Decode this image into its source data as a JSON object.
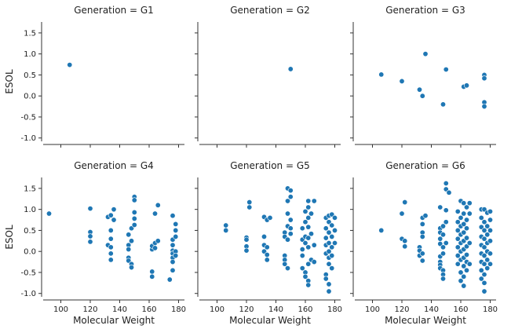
{
  "chart_data": {
    "type": "scatter",
    "layout": "facet-grid 2x3, shared axes",
    "xlabel": "Molecular Weight",
    "ylabel": "ESOL",
    "xlim": [
      88,
      184
    ],
    "ylim": [
      -1.08,
      1.76
    ],
    "xticks": [
      100,
      120,
      140,
      160,
      180
    ],
    "yticks": [
      -1.0,
      -0.5,
      0.0,
      0.5,
      1.0,
      1.5
    ],
    "ytick_labels": [
      "-1.0",
      "-0.5",
      "0.0",
      "0.5",
      "1.0",
      "1.5"
    ],
    "grid": false,
    "marker_color": "#1f77b4",
    "panels": [
      {
        "title": "Generation = G1",
        "points": [
          [
            106,
            0.74
          ]
        ]
      },
      {
        "title": "Generation = G2",
        "points": [
          [
            150,
            0.64
          ]
        ]
      },
      {
        "title": "Generation = G3",
        "points": [
          [
            106,
            0.51
          ],
          [
            120,
            0.35
          ],
          [
            132,
            0.15
          ],
          [
            134,
            0.0
          ],
          [
            136,
            1.0
          ],
          [
            148,
            -0.2
          ],
          [
            150,
            0.63
          ],
          [
            162,
            0.22
          ],
          [
            164,
            0.25
          ],
          [
            176,
            0.5
          ],
          [
            176,
            0.42
          ],
          [
            176,
            -0.15
          ],
          [
            176,
            -0.25
          ]
        ]
      },
      {
        "title": "Generation = G4",
        "points": [
          [
            92,
            0.9
          ],
          [
            120,
            1.02
          ],
          [
            120,
            0.46
          ],
          [
            120,
            0.36
          ],
          [
            120,
            0.23
          ],
          [
            132,
            0.82
          ],
          [
            132,
            0.15
          ],
          [
            134,
            0.86
          ],
          [
            134,
            0.5
          ],
          [
            134,
            0.3
          ],
          [
            134,
            0.1
          ],
          [
            134,
            -0.05
          ],
          [
            134,
            -0.2
          ],
          [
            136,
            0.75
          ],
          [
            136,
            1.0
          ],
          [
            146,
            0.4
          ],
          [
            146,
            0.15
          ],
          [
            146,
            0.05
          ],
          [
            146,
            -0.15
          ],
          [
            146,
            -0.22
          ],
          [
            148,
            0.55
          ],
          [
            148,
            0.25
          ],
          [
            148,
            -0.3
          ],
          [
            148,
            -0.38
          ],
          [
            150,
            0.93
          ],
          [
            150,
            0.78
          ],
          [
            150,
            0.63
          ],
          [
            150,
            1.3
          ],
          [
            150,
            1.22
          ],
          [
            162,
            0.05
          ],
          [
            162,
            0.13
          ],
          [
            162,
            -0.48
          ],
          [
            162,
            -0.6
          ],
          [
            164,
            0.9
          ],
          [
            164,
            0.2
          ],
          [
            164,
            0.08
          ],
          [
            166,
            0.25
          ],
          [
            166,
            1.1
          ],
          [
            176,
            0.85
          ],
          [
            176,
            0.28
          ],
          [
            176,
            0.15
          ],
          [
            176,
            0.02
          ],
          [
            176,
            -0.05
          ],
          [
            176,
            -0.15
          ],
          [
            176,
            -0.25
          ],
          [
            176,
            -0.45
          ],
          [
            178,
            0.65
          ],
          [
            178,
            0.5
          ],
          [
            178,
            0.35
          ],
          [
            178,
            0.0
          ],
          [
            178,
            -0.1
          ],
          [
            174,
            -0.67
          ]
        ]
      },
      {
        "title": "Generation = G5",
        "points": [
          [
            106,
            0.62
          ],
          [
            106,
            0.5
          ],
          [
            120,
            0.33
          ],
          [
            120,
            0.28
          ],
          [
            120,
            0.12
          ],
          [
            120,
            0.02
          ],
          [
            122,
            1.05
          ],
          [
            122,
            1.17
          ],
          [
            132,
            0.82
          ],
          [
            132,
            0.35
          ],
          [
            132,
            0.15
          ],
          [
            132,
            0.0
          ],
          [
            134,
            0.1
          ],
          [
            134,
            -0.08
          ],
          [
            134,
            -0.2
          ],
          [
            134,
            0.75
          ],
          [
            136,
            0.8
          ],
          [
            146,
            0.45
          ],
          [
            146,
            0.35
          ],
          [
            146,
            -0.1
          ],
          [
            146,
            -0.2
          ],
          [
            146,
            -0.3
          ],
          [
            148,
            1.5
          ],
          [
            148,
            1.2
          ],
          [
            148,
            0.9
          ],
          [
            148,
            0.6
          ],
          [
            148,
            0.28
          ],
          [
            148,
            -0.4
          ],
          [
            150,
            0.55
          ],
          [
            150,
            0.42
          ],
          [
            150,
            1.45
          ],
          [
            150,
            1.3
          ],
          [
            150,
            0.75
          ],
          [
            158,
            0.55
          ],
          [
            158,
            0.28
          ],
          [
            158,
            0.05
          ],
          [
            158,
            -0.1
          ],
          [
            158,
            -0.4
          ],
          [
            160,
            0.95
          ],
          [
            160,
            0.7
          ],
          [
            160,
            0.35
          ],
          [
            160,
            0.2
          ],
          [
            160,
            -0.5
          ],
          [
            160,
            -0.6
          ],
          [
            162,
            1.2
          ],
          [
            162,
            1.05
          ],
          [
            162,
            0.8
          ],
          [
            162,
            0.58
          ],
          [
            162,
            0.32
          ],
          [
            162,
            0.1
          ],
          [
            162,
            -0.3
          ],
          [
            162,
            -0.7
          ],
          [
            162,
            -0.8
          ],
          [
            164,
            0.9
          ],
          [
            164,
            0.42
          ],
          [
            164,
            -0.2
          ],
          [
            166,
            1.2
          ],
          [
            166,
            0.15
          ],
          [
            166,
            -0.25
          ],
          [
            174,
            0.8
          ],
          [
            174,
            0.55
          ],
          [
            174,
            0.32
          ],
          [
            174,
            0.15
          ],
          [
            174,
            -0.05
          ],
          [
            174,
            -0.55
          ],
          [
            174,
            -0.65
          ],
          [
            176,
            0.85
          ],
          [
            176,
            0.7
          ],
          [
            176,
            0.45
          ],
          [
            176,
            0.2
          ],
          [
            176,
            0.0
          ],
          [
            176,
            -0.15
          ],
          [
            176,
            -0.3
          ],
          [
            176,
            -0.78
          ],
          [
            176,
            -0.95
          ],
          [
            178,
            0.88
          ],
          [
            178,
            0.62
          ],
          [
            178,
            0.35
          ],
          [
            178,
            0.1
          ],
          [
            178,
            -0.1
          ],
          [
            178,
            -0.4
          ],
          [
            180,
            0.8
          ],
          [
            180,
            0.5
          ],
          [
            180,
            0.2
          ]
        ]
      },
      {
        "title": "Generation = G6",
        "points": [
          [
            106,
            0.5
          ],
          [
            120,
            0.3
          ],
          [
            120,
            0.9
          ],
          [
            122,
            0.25
          ],
          [
            122,
            1.17
          ],
          [
            122,
            0.12
          ],
          [
            132,
            0.1
          ],
          [
            132,
            0.02
          ],
          [
            132,
            -0.1
          ],
          [
            134,
            0.65
          ],
          [
            134,
            0.8
          ],
          [
            134,
            0.45
          ],
          [
            134,
            0.35
          ],
          [
            134,
            -0.05
          ],
          [
            134,
            -0.22
          ],
          [
            136,
            0.85
          ],
          [
            146,
            1.05
          ],
          [
            146,
            0.55
          ],
          [
            146,
            0.45
          ],
          [
            146,
            0.3
          ],
          [
            146,
            0.18
          ],
          [
            146,
            -0.12
          ],
          [
            146,
            -0.25
          ],
          [
            146,
            -0.32
          ],
          [
            146,
            -0.4
          ],
          [
            148,
            0.6
          ],
          [
            148,
            0.4
          ],
          [
            148,
            0.1
          ],
          [
            148,
            -0.05
          ],
          [
            148,
            -0.45
          ],
          [
            148,
            -0.55
          ],
          [
            148,
            -0.65
          ],
          [
            150,
            0.98
          ],
          [
            150,
            0.7
          ],
          [
            150,
            1.62
          ],
          [
            150,
            1.48
          ],
          [
            150,
            0.2
          ],
          [
            152,
            1.4
          ],
          [
            158,
            0.95
          ],
          [
            158,
            0.7
          ],
          [
            158,
            0.5
          ],
          [
            158,
            0.3
          ],
          [
            158,
            0.1
          ],
          [
            158,
            -0.1
          ],
          [
            158,
            -0.3
          ],
          [
            160,
            1.2
          ],
          [
            160,
            0.8
          ],
          [
            160,
            0.6
          ],
          [
            160,
            0.4
          ],
          [
            160,
            0.2
          ],
          [
            160,
            0.0
          ],
          [
            160,
            -0.2
          ],
          [
            160,
            -0.5
          ],
          [
            160,
            -0.7
          ],
          [
            162,
            1.15
          ],
          [
            162,
            0.9
          ],
          [
            162,
            0.65
          ],
          [
            162,
            0.45
          ],
          [
            162,
            0.25
          ],
          [
            162,
            0.05
          ],
          [
            162,
            -0.15
          ],
          [
            162,
            -0.35
          ],
          [
            162,
            -0.6
          ],
          [
            162,
            -0.82
          ],
          [
            164,
            1.05
          ],
          [
            164,
            0.75
          ],
          [
            164,
            0.55
          ],
          [
            164,
            0.32
          ],
          [
            164,
            0.12
          ],
          [
            164,
            -0.08
          ],
          [
            164,
            -0.25
          ],
          [
            164,
            -0.45
          ],
          [
            166,
            1.15
          ],
          [
            166,
            0.9
          ],
          [
            166,
            0.2
          ],
          [
            166,
            -0.3
          ],
          [
            174,
            1.0
          ],
          [
            174,
            0.8
          ],
          [
            174,
            0.58
          ],
          [
            174,
            0.35
          ],
          [
            174,
            0.15
          ],
          [
            174,
            -0.05
          ],
          [
            174,
            -0.25
          ],
          [
            174,
            -0.45
          ],
          [
            174,
            -0.65
          ],
          [
            176,
            1.0
          ],
          [
            176,
            0.7
          ],
          [
            176,
            0.5
          ],
          [
            176,
            0.3
          ],
          [
            176,
            0.1
          ],
          [
            176,
            -0.1
          ],
          [
            176,
            -0.3
          ],
          [
            176,
            -0.55
          ],
          [
            176,
            -0.75
          ],
          [
            176,
            -0.95
          ],
          [
            178,
            0.92
          ],
          [
            178,
            0.6
          ],
          [
            178,
            0.4
          ],
          [
            178,
            0.2
          ],
          [
            178,
            0.0
          ],
          [
            178,
            -0.2
          ],
          [
            178,
            -0.4
          ],
          [
            180,
            0.95
          ],
          [
            180,
            0.75
          ],
          [
            180,
            0.5
          ],
          [
            180,
            0.25
          ],
          [
            180,
            -0.05
          ],
          [
            180,
            -0.3
          ]
        ]
      }
    ]
  }
}
